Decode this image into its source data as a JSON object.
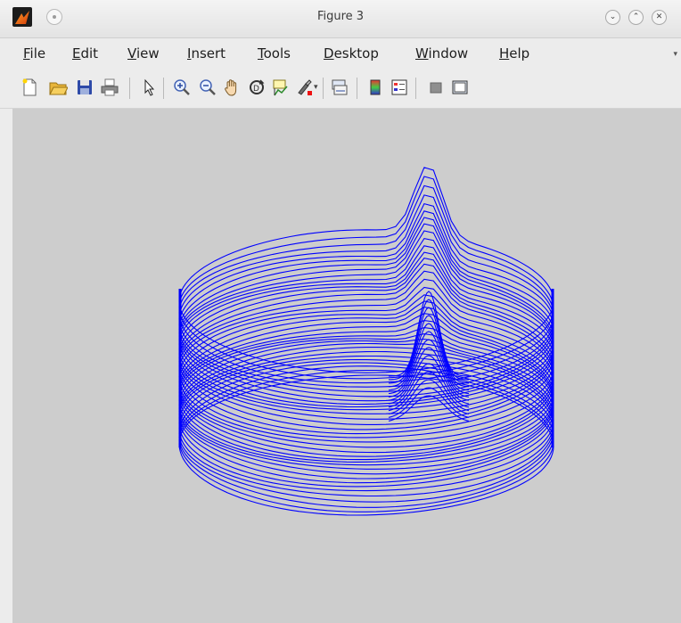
{
  "window": {
    "title": "Figure 3"
  },
  "menu": [
    {
      "label": "File",
      "name": "menu-file"
    },
    {
      "label": "Edit",
      "name": "menu-edit"
    },
    {
      "label": "View",
      "name": "menu-view"
    },
    {
      "label": "Insert",
      "name": "menu-insert"
    },
    {
      "label": "Tools",
      "name": "menu-tools"
    },
    {
      "label": "Desktop",
      "name": "menu-desktop"
    },
    {
      "label": "Window",
      "name": "menu-window"
    },
    {
      "label": "Help",
      "name": "menu-help"
    }
  ],
  "toolbar": {
    "buttons": [
      {
        "name": "new-figure-icon"
      },
      {
        "name": "open-file-icon"
      },
      {
        "name": "save-icon"
      },
      {
        "name": "print-icon"
      },
      {
        "name": "pointer-icon"
      },
      {
        "name": "zoom-in-icon"
      },
      {
        "name": "zoom-out-icon"
      },
      {
        "name": "pan-hand-icon"
      },
      {
        "name": "rotate-3d-icon"
      },
      {
        "name": "data-cursor-icon"
      },
      {
        "name": "brush-icon"
      },
      {
        "name": "link-plot-icon"
      },
      {
        "name": "colorbar-icon"
      },
      {
        "name": "legend-icon"
      },
      {
        "name": "hide-plot-tools-icon"
      },
      {
        "name": "show-plot-tools-icon"
      }
    ]
  },
  "colors": {
    "line": "#0000ff",
    "figure_background": "#cdcdcd"
  },
  "plot": {
    "type": "3-D stacked contour lines (cylinder with peak)"
  }
}
